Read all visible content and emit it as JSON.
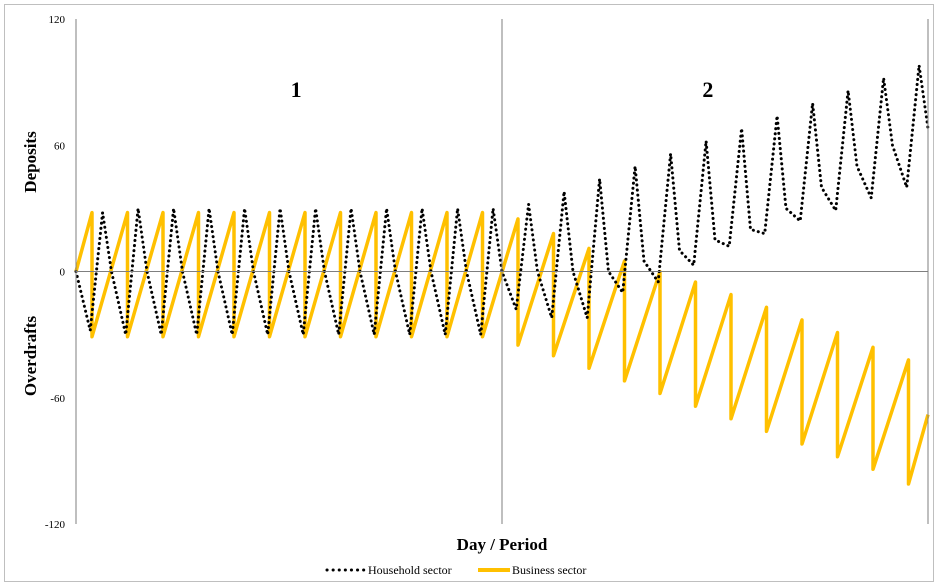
{
  "chart_data": {
    "type": "line",
    "title": "",
    "xlabel": "Day / Period",
    "ylabel_top": "Deposits",
    "ylabel_bottom": "Overdrafts",
    "ylim": [
      -120,
      120
    ],
    "yticks": [
      120,
      60,
      0,
      -60,
      -120
    ],
    "xlim": [
      0,
      24
    ],
    "phase_divider_x": 12,
    "phase_labels": [
      {
        "text": "1",
        "x": 6.2,
        "y": 83
      },
      {
        "text": "2",
        "x": 17.8,
        "y": 83
      }
    ],
    "grid": false,
    "legend_position": "bottom",
    "series": [
      {
        "name": "Household sector",
        "style": "dotted",
        "color": "#000000",
        "x": [
          0,
          0.4,
          0.75,
          1.0,
          1.4,
          1.75,
          2.0,
          2.4,
          2.75,
          3.0,
          3.4,
          3.75,
          4.0,
          4.4,
          4.75,
          5.0,
          5.4,
          5.75,
          6.0,
          6.4,
          6.75,
          7.0,
          7.4,
          7.75,
          8.0,
          8.4,
          8.75,
          9.0,
          9.4,
          9.75,
          10.0,
          10.4,
          10.75,
          11.0,
          11.4,
          11.75,
          12.0,
          12.4,
          12.75,
          13.0,
          13.4,
          13.75,
          14.0,
          14.4,
          14.75,
          15.0,
          15.4,
          15.75,
          16.0,
          16.4,
          16.75,
          17.0,
          17.4,
          17.75,
          18.0,
          18.4,
          18.75,
          19.0,
          19.4,
          19.75,
          20.0,
          20.4,
          20.75,
          21.0,
          21.4,
          21.75,
          22.0,
          22.4,
          22.75,
          23.0,
          23.4,
          23.75,
          24.0
        ],
        "values": [
          0,
          -28,
          28,
          0,
          -30,
          30,
          0,
          -30,
          30,
          0,
          -30,
          30,
          0,
          -30,
          30,
          0,
          -30,
          30,
          0,
          -30,
          30,
          0,
          -30,
          30,
          0,
          -30,
          30,
          0,
          -30,
          30,
          0,
          -30,
          30,
          0,
          -30,
          30,
          0,
          -18,
          32,
          0,
          -22,
          38,
          0,
          -22,
          44,
          0,
          -10,
          50,
          5,
          -5,
          56,
          10,
          3,
          62,
          15,
          12,
          68,
          20,
          18,
          74,
          30,
          24,
          80,
          40,
          29,
          86,
          50,
          35,
          92,
          60,
          40,
          98,
          68
        ]
      },
      {
        "name": "Business sector",
        "style": "solid",
        "color": "#ffc000",
        "x": [
          0,
          0.45,
          0.45,
          1.45,
          1.45,
          2.45,
          2.45,
          3.45,
          3.45,
          4.45,
          4.45,
          5.45,
          5.45,
          6.45,
          6.45,
          7.45,
          7.45,
          8.45,
          8.45,
          9.45,
          9.45,
          10.45,
          10.45,
          11.45,
          11.45,
          12.45,
          12.45,
          13.45,
          13.45,
          14.45,
          14.45,
          15.45,
          15.45,
          16.45,
          16.45,
          17.45,
          17.45,
          18.45,
          18.45,
          19.45,
          19.45,
          20.45,
          20.45,
          21.45,
          21.45,
          22.45,
          22.45,
          23.45,
          23.45,
          24.0
        ],
        "values": [
          0,
          28,
          -31,
          28,
          -31,
          28,
          -31,
          28,
          -31,
          28,
          -31,
          28,
          -31,
          28,
          -31,
          28,
          -31,
          28,
          -31,
          28,
          -31,
          28,
          -31,
          28,
          -31,
          25,
          -35,
          18,
          -40,
          11,
          -46,
          5,
          -52,
          0,
          -58,
          -5,
          -64,
          -11,
          -70,
          -17,
          -76,
          -23,
          -82,
          -29,
          -88,
          -36,
          -94,
          -42,
          -101,
          -68
        ]
      }
    ]
  }
}
